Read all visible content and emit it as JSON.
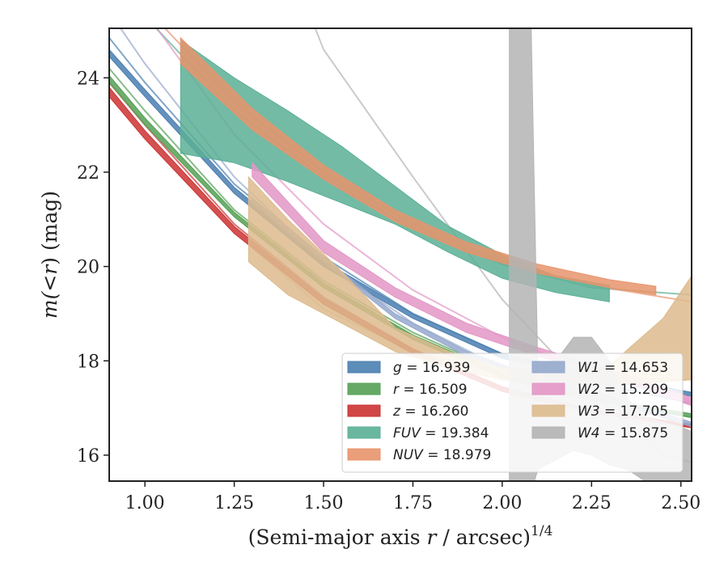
{
  "chart_data": {
    "type": "area",
    "xlabel_html": "(Semi-major axis <tspan font-style=\"italic\">r</tspan> / arcsec)",
    "xlabel_parts": [
      "(Semi-major axis ",
      "r",
      " / arcsec)",
      "1/4"
    ],
    "ylabel_parts": [
      "m(",
      "<",
      "r",
      ") (mag)"
    ],
    "xlim": [
      0.9,
      2.53
    ],
    "ylim": [
      25.05,
      15.45
    ],
    "y_inverted": true,
    "x_ticks": [
      1.0,
      1.25,
      1.5,
      1.75,
      2.0,
      2.25,
      2.5
    ],
    "x_tick_labels": [
      "1.00",
      "1.25",
      "1.50",
      "1.75",
      "2.00",
      "2.25",
      "2.50"
    ],
    "y_ticks": [
      16,
      18,
      20,
      22,
      24
    ],
    "y_tick_labels": [
      "16",
      "18",
      "20",
      "22",
      "24"
    ],
    "legend_position": "lower-right",
    "series": [
      {
        "name": "g = 16.939",
        "label": "g",
        "value": "16.939",
        "color": "#4a7fb0",
        "model_x": [
          0.9,
          1.0,
          1.25,
          1.5,
          1.75,
          2.0,
          2.25,
          2.53
        ],
        "model_y": [
          24.85,
          23.9,
          21.75,
          20.2,
          19.0,
          18.15,
          17.55,
          17.1
        ],
        "band_x": [
          0.9,
          1.0,
          1.25,
          1.5,
          1.75,
          2.0,
          2.25,
          2.53
        ],
        "band_lo": [
          24.45,
          23.6,
          21.55,
          20.0,
          18.9,
          18.05,
          17.65,
          17.25
        ],
        "band_hi": [
          24.6,
          23.75,
          21.68,
          20.12,
          19.0,
          18.15,
          17.75,
          17.33
        ]
      },
      {
        "name": "r = 16.509",
        "label": "r",
        "value": "16.509",
        "color": "#55a055",
        "model_x": [
          0.9,
          1.0,
          1.25,
          1.5,
          1.75,
          2.0,
          2.25,
          2.53
        ],
        "model_y": [
          24.2,
          23.3,
          21.2,
          19.7,
          18.6,
          17.75,
          17.2,
          16.8
        ],
        "band_x": [
          0.9,
          1.0,
          1.25,
          1.5,
          1.75,
          2.0,
          2.25,
          2.53
        ],
        "band_lo": [
          23.9,
          23.0,
          21.05,
          19.55,
          18.45,
          17.65,
          17.15,
          16.8
        ],
        "band_hi": [
          24.05,
          23.15,
          21.15,
          19.65,
          18.55,
          17.73,
          17.22,
          16.88
        ]
      },
      {
        "name": "z = 16.260",
        "label": "z",
        "value": "16.260",
        "color": "#cc3333",
        "model_x": [
          0.9,
          1.0,
          1.25,
          1.5,
          1.75,
          2.0,
          2.25,
          2.53
        ],
        "model_y": [
          23.9,
          23.0,
          20.9,
          19.35,
          18.25,
          17.45,
          16.95,
          16.6
        ],
        "band_x": [
          0.9,
          1.0,
          1.25,
          1.5,
          1.75,
          2.0,
          2.25,
          2.53
        ],
        "band_lo": [
          23.6,
          22.7,
          20.7,
          19.2,
          18.15,
          17.35,
          16.9,
          16.58
        ],
        "band_hi": [
          23.8,
          22.88,
          20.85,
          19.32,
          18.25,
          17.43,
          16.97,
          16.65
        ]
      },
      {
        "name": "FUV = 19.384",
        "label": "FUV",
        "value": "19.384",
        "color": "#5aaf95",
        "model_x": [
          1.0,
          1.25,
          1.5,
          1.75,
          2.0,
          2.25,
          2.53
        ],
        "model_y": [
          25.3,
          23.3,
          21.9,
          20.8,
          20.05,
          19.55,
          19.4
        ],
        "band_x": [
          1.1,
          1.25,
          1.4,
          1.55,
          1.7,
          1.85,
          2.0,
          2.15,
          2.3
        ],
        "band_lo": [
          22.4,
          22.2,
          21.8,
          21.35,
          20.9,
          20.3,
          19.75,
          19.45,
          19.25
        ],
        "band_hi": [
          24.8,
          24.0,
          23.3,
          22.55,
          21.7,
          20.85,
          20.25,
          19.8,
          19.6
        ]
      },
      {
        "name": "NUV = 18.979",
        "label": "NUV",
        "value": "18.979",
        "color": "#e8946c",
        "model_x": [
          1.0,
          1.25,
          1.5,
          1.75,
          2.0,
          2.25,
          2.53
        ],
        "model_y": [
          25.5,
          23.5,
          22.0,
          20.9,
          20.1,
          19.6,
          19.25
        ],
        "band_x": [
          1.1,
          1.3,
          1.5,
          1.7,
          1.9,
          2.1,
          2.3,
          2.43
        ],
        "band_lo": [
          24.3,
          22.9,
          21.85,
          20.95,
          20.3,
          19.85,
          19.55,
          19.4
        ],
        "band_hi": [
          24.85,
          23.35,
          22.15,
          21.2,
          20.52,
          20.05,
          19.72,
          19.58
        ]
      },
      {
        "name": "W1 = 14.653",
        "label": "W1",
        "value": "14.653",
        "color": "#95a8cc",
        "model_x": [
          0.9,
          1.0,
          1.25,
          1.5,
          1.75,
          2.0,
          2.25,
          2.53
        ],
        "model_y": [
          25.4,
          24.3,
          21.9,
          20.1,
          18.8,
          17.85,
          17.2,
          16.65
        ],
        "band_x": [
          1.3,
          1.5,
          1.7,
          1.9,
          2.1,
          2.3,
          2.53
        ],
        "band_lo": [
          21.35,
          20.1,
          18.9,
          18.1,
          17.55,
          17.15,
          16.6
        ],
        "band_hi": [
          21.45,
          20.2,
          19.0,
          18.2,
          17.65,
          17.25,
          16.7
        ]
      },
      {
        "name": "W2 = 15.209",
        "label": "W2",
        "value": "15.209",
        "color": "#e396c5",
        "model_x": [
          0.9,
          1.0,
          1.25,
          1.5,
          1.75,
          2.0,
          2.25,
          2.53
        ],
        "model_y": [
          26.5,
          25.4,
          22.8,
          20.9,
          19.5,
          18.5,
          17.75,
          17.15
        ],
        "band_x": [
          1.3,
          1.5,
          1.7,
          1.9,
          2.1,
          2.3,
          2.53
        ],
        "band_lo": [
          21.9,
          20.3,
          19.35,
          18.6,
          18.1,
          17.65,
          17.05
        ],
        "band_hi": [
          22.2,
          20.55,
          19.55,
          18.8,
          18.28,
          17.82,
          17.22
        ]
      },
      {
        "name": "W3 = 17.705",
        "label": "W3",
        "value": "17.705",
        "color": "#ddbb8e",
        "model_x": [
          1.3,
          1.5,
          1.75,
          2.0,
          2.25,
          2.53
        ],
        "model_y": [
          20.4,
          19.1,
          18.2,
          17.75,
          17.65,
          17.6
        ],
        "band_x": [
          1.29,
          1.4,
          1.55,
          1.7,
          1.85,
          2.0,
          2.15,
          2.3,
          2.45,
          2.53
        ],
        "band_lo": [
          20.1,
          19.4,
          18.8,
          18.2,
          17.85,
          17.6,
          17.5,
          17.5,
          17.55,
          17.6
        ],
        "band_hi": [
          21.9,
          21.0,
          19.9,
          18.7,
          18.2,
          17.85,
          17.8,
          17.9,
          18.9,
          19.8
        ]
      },
      {
        "name": "W4 = 15.875",
        "label": "W4",
        "value": "15.875",
        "color": "#b4b4b4",
        "model_x": [
          1.35,
          1.5,
          1.75,
          2.0,
          2.25,
          2.45,
          2.53
        ],
        "model_y": [
          27.5,
          24.6,
          21.9,
          19.3,
          17.3,
          16.0,
          15.85
        ],
        "band_x": [
          2.02,
          2.05,
          2.08,
          2.1,
          2.15,
          2.2,
          2.25,
          2.3,
          2.35,
          2.4,
          2.45,
          2.5,
          2.53
        ],
        "band_lo": [
          15.2,
          15.2,
          15.2,
          15.7,
          15.9,
          16.1,
          16.0,
          15.8,
          15.7,
          15.45,
          15.45,
          15.45,
          15.45
        ],
        "band_hi": [
          25.5,
          25.5,
          25.5,
          17.6,
          18.0,
          18.5,
          18.5,
          18.0,
          17.2,
          16.8,
          16.7,
          16.6,
          16.5
        ]
      }
    ]
  }
}
